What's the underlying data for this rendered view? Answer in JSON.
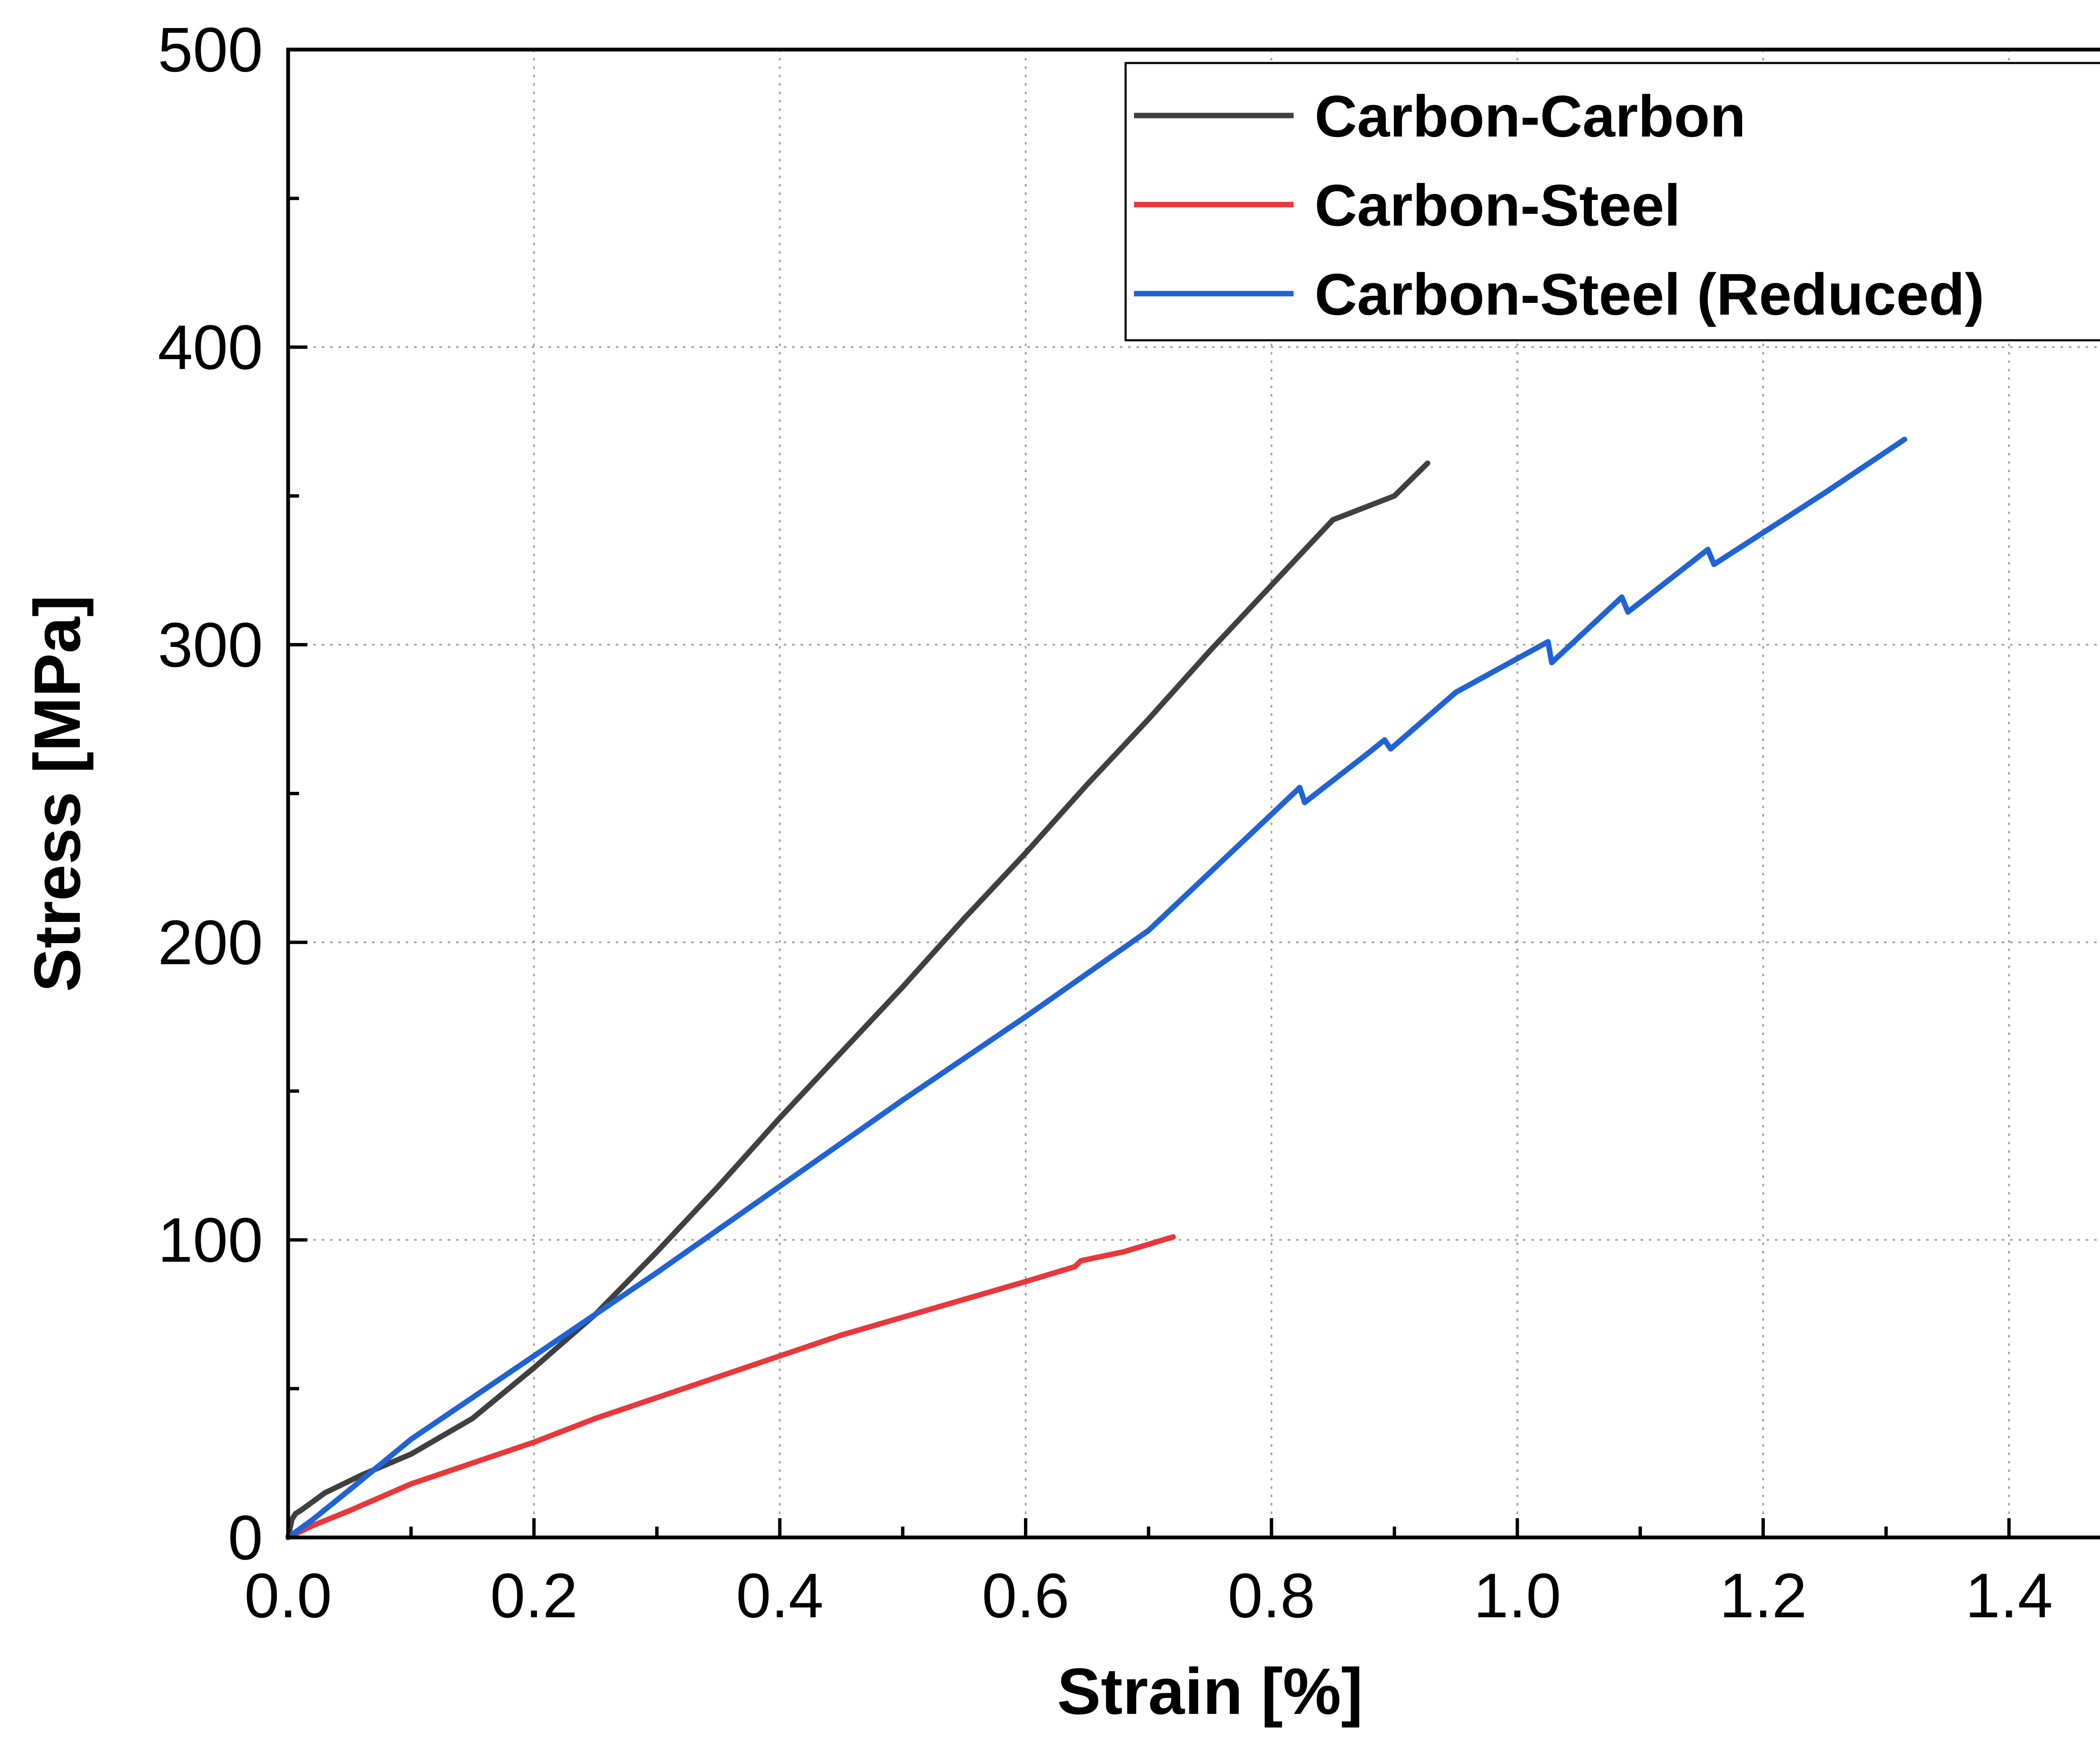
{
  "chart_data": {
    "type": "line",
    "title": "",
    "xlabel": "Strain [%]",
    "ylabel": "Stress [MPa]",
    "xlim": [
      0.0,
      1.5
    ],
    "ylim": [
      0,
      500
    ],
    "xticks": [
      0.0,
      0.2,
      0.4,
      0.6,
      0.8,
      1.0,
      1.2,
      1.4
    ],
    "xtick_labels": [
      "0.0",
      "0.2",
      "0.4",
      "0.6",
      "0.8",
      "1.0",
      "1.2",
      "1.4"
    ],
    "yticks": [
      0,
      100,
      200,
      300,
      400,
      500
    ],
    "ytick_labels": [
      "0",
      "100",
      "200",
      "300",
      "400",
      "500"
    ],
    "grid": true,
    "legend_position": "top-right",
    "series": [
      {
        "name": "Carbon-Carbon",
        "color": "#404040",
        "x": [
          0.0,
          0.003,
          0.006,
          0.01,
          0.03,
          0.06,
          0.1,
          0.15,
          0.2,
          0.25,
          0.3,
          0.35,
          0.4,
          0.45,
          0.5,
          0.55,
          0.6,
          0.65,
          0.7,
          0.75,
          0.8,
          0.85,
          0.9,
          0.927
        ],
        "y": [
          0,
          6,
          8,
          9,
          15,
          21,
          28,
          40,
          57,
          75,
          96,
          118,
          141,
          163,
          185,
          208,
          230,
          253,
          275,
          298,
          320,
          342,
          350,
          361
        ]
      },
      {
        "name": "Carbon-Steel",
        "color": "#e8383b",
        "x": [
          0.0,
          0.02,
          0.05,
          0.1,
          0.15,
          0.2,
          0.25,
          0.3,
          0.35,
          0.4,
          0.45,
          0.5,
          0.55,
          0.6,
          0.64,
          0.645,
          0.68,
          0.72
        ],
        "y": [
          0,
          4,
          9,
          18,
          25,
          32,
          40,
          47,
          54,
          61,
          68,
          74,
          80,
          86,
          91,
          93,
          96,
          101
        ]
      },
      {
        "name": "Carbon-Steel (Reduced)",
        "color": "#1f63d6",
        "x": [
          0.0,
          0.02,
          0.05,
          0.1,
          0.2,
          0.3,
          0.4,
          0.5,
          0.6,
          0.7,
          0.8,
          0.823,
          0.827,
          0.88,
          0.892,
          0.897,
          0.95,
          1.025,
          1.028,
          1.085,
          1.09,
          1.155,
          1.16,
          1.25,
          1.315
        ],
        "y": [
          0,
          6,
          16,
          33,
          61,
          89,
          118,
          147,
          175,
          204,
          243,
          252,
          247,
          264,
          268,
          265,
          284,
          301,
          294,
          316,
          311,
          332,
          327,
          351,
          369
        ]
      }
    ]
  }
}
